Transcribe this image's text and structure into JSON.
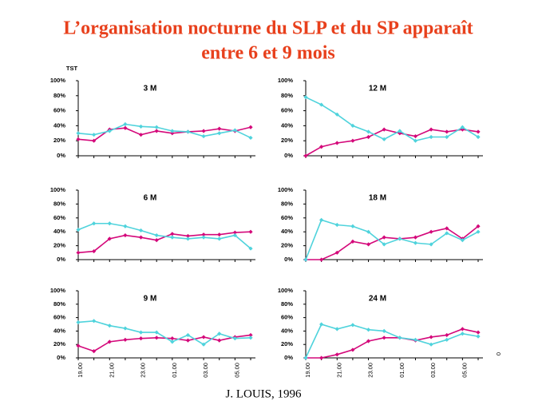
{
  "title_lines": [
    "L’organisation nocturne du SLP et du SP apparaît",
    "entre 6 et 9 mois"
  ],
  "y_unit_label": "TST",
  "footer": "J. LOUIS, 1996",
  "chart_data": [
    {
      "type": "line",
      "title": "3 M",
      "categories": [
        null,
        null,
        null,
        null,
        null,
        null,
        null,
        null,
        null,
        null,
        null,
        null
      ],
      "ylim": [
        0,
        100
      ],
      "yticks": [
        {
          "value": 0,
          "label": "0%"
        },
        {
          "value": 20,
          "label": "20%"
        },
        {
          "value": 40,
          "label": "40%"
        },
        {
          "value": 60,
          "label": "60%"
        },
        {
          "value": 80,
          "label": "80%"
        },
        {
          "value": 100,
          "label": "100%"
        }
      ],
      "series": [
        {
          "color": "#d4087a",
          "values": [
            22,
            20,
            35,
            37,
            28,
            33,
            30,
            32,
            33,
            36,
            33,
            38
          ]
        },
        {
          "color": "#4fd3dc",
          "values": [
            30,
            28,
            33,
            42,
            39,
            38,
            33,
            32,
            26,
            30,
            34,
            24
          ]
        }
      ]
    },
    {
      "type": "line",
      "title": "12 M",
      "categories": [
        null,
        null,
        null,
        null,
        null,
        null,
        null,
        null,
        null,
        null,
        null,
        null
      ],
      "ylim": [
        0,
        100
      ],
      "yticks": [
        {
          "value": 0,
          "label": "0%"
        },
        {
          "value": 20,
          "label": "20%"
        },
        {
          "value": 40,
          "label": "40%"
        },
        {
          "value": 60,
          "label": "60%"
        },
        {
          "value": 80,
          "label": "80%"
        },
        {
          "value": 100,
          "label": "100%"
        }
      ],
      "series": [
        {
          "color": "#d4087a",
          "values": [
            0,
            12,
            17,
            20,
            25,
            35,
            30,
            26,
            35,
            32,
            35,
            32
          ]
        },
        {
          "color": "#4fd3dc",
          "values": [
            78,
            68,
            55,
            40,
            32,
            22,
            33,
            20,
            25,
            25,
            38,
            25
          ]
        }
      ]
    },
    {
      "type": "line",
      "title": "6 M",
      "categories": [
        null,
        null,
        null,
        null,
        null,
        null,
        null,
        null,
        null,
        null,
        null,
        null
      ],
      "ylim": [
        0,
        100
      ],
      "yticks": [
        {
          "value": 0,
          "label": "0%"
        },
        {
          "value": 20,
          "label": "20%"
        },
        {
          "value": 40,
          "label": "40%"
        },
        {
          "value": 60,
          "label": "60%"
        },
        {
          "value": 80,
          "label": "80%"
        },
        {
          "value": 100,
          "label": "100%"
        }
      ],
      "series": [
        {
          "color": "#d4087a",
          "values": [
            10,
            12,
            30,
            35,
            32,
            28,
            37,
            34,
            36,
            36,
            39,
            40
          ]
        },
        {
          "color": "#4fd3dc",
          "values": [
            43,
            52,
            52,
            48,
            42,
            35,
            32,
            30,
            32,
            30,
            35,
            16
          ]
        }
      ]
    },
    {
      "type": "line",
      "title": "18 M",
      "categories": [
        null,
        null,
        null,
        null,
        null,
        null,
        null,
        null,
        null,
        null,
        null,
        null
      ],
      "ylim": [
        0,
        100
      ],
      "yticks": [
        {
          "value": 0,
          "label": "0%"
        },
        {
          "value": 20,
          "label": "20%"
        },
        {
          "value": 40,
          "label": "40%"
        },
        {
          "value": 60,
          "label": "60%"
        },
        {
          "value": 80,
          "label": "80%"
        },
        {
          "value": 100,
          "label": "100%"
        }
      ],
      "series": [
        {
          "color": "#d4087a",
          "values": [
            0,
            0,
            10,
            26,
            22,
            32,
            30,
            32,
            40,
            45,
            30,
            48
          ]
        },
        {
          "color": "#4fd3dc",
          "values": [
            0,
            57,
            50,
            48,
            40,
            22,
            30,
            24,
            22,
            38,
            28,
            40
          ]
        }
      ]
    },
    {
      "type": "line",
      "title": "9 M",
      "categories": [
        "19.00",
        null,
        "21.00",
        null,
        "23.00",
        null,
        "01.00",
        null,
        "03.00",
        null,
        "05.00",
        null
      ],
      "ylim": [
        0,
        100
      ],
      "yticks": [
        {
          "value": 0,
          "label": "0%"
        },
        {
          "value": 20,
          "label": "20%"
        },
        {
          "value": 40,
          "label": "40%"
        },
        {
          "value": 60,
          "label": "60%"
        },
        {
          "value": 80,
          "label": "80%"
        },
        {
          "value": 100,
          "label": "100%"
        }
      ],
      "series": [
        {
          "color": "#d4087a",
          "values": [
            18,
            10,
            24,
            27,
            29,
            30,
            29,
            26,
            31,
            26,
            31,
            34
          ]
        },
        {
          "color": "#4fd3dc",
          "values": [
            53,
            55,
            48,
            44,
            38,
            38,
            24,
            34,
            20,
            36,
            29,
            30
          ]
        }
      ]
    },
    {
      "type": "line",
      "title": "24 M",
      "categories": [
        "19.00",
        null,
        "21.00",
        null,
        "23.00",
        null,
        "01.00",
        null,
        "03.00",
        null,
        "05.00",
        null
      ],
      "ylim": [
        0,
        100
      ],
      "yticks": [
        {
          "value": 0,
          "label": "0%"
        },
        {
          "value": 20,
          "label": "20%"
        },
        {
          "value": 40,
          "label": "40%"
        },
        {
          "value": 60,
          "label": "60%"
        },
        {
          "value": 80,
          "label": "80%"
        },
        {
          "value": 100,
          "label": "100%"
        }
      ],
      "annotation": "0",
      "series": [
        {
          "color": "#d4087a",
          "values": [
            0,
            0,
            5,
            12,
            25,
            30,
            30,
            26,
            31,
            34,
            43,
            38
          ]
        },
        {
          "color": "#4fd3dc",
          "values": [
            0,
            50,
            43,
            49,
            42,
            40,
            30,
            27,
            20,
            27,
            36,
            32
          ]
        }
      ]
    }
  ]
}
